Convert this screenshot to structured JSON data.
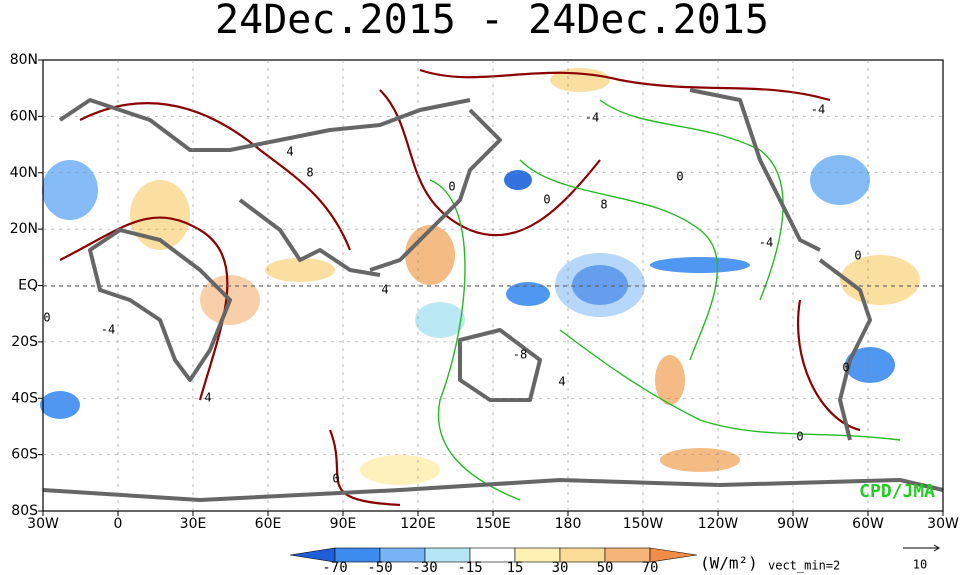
{
  "header": {
    "title": "24Dec.2015 - 24Dec.2015"
  },
  "map": {
    "lat_labels": [
      "80N",
      "60N",
      "40N",
      "20N",
      "EQ",
      "20S",
      "40S",
      "60S",
      "80S"
    ],
    "lon_labels": [
      "30W",
      "0",
      "30E",
      "60E",
      "90E",
      "120E",
      "150E",
      "180",
      "150W",
      "120W",
      "90W",
      "60W",
      "30W"
    ],
    "contour_labels": [
      "4",
      "8",
      "0",
      "-4",
      "0",
      "8",
      "0",
      "-4",
      "-4",
      "0",
      "4",
      "-4",
      "0",
      "-8",
      "4",
      "4",
      "0",
      "0",
      "0"
    ],
    "credit": "CPD/JMA"
  },
  "legend": {
    "ticks": [
      "-70",
      "-50",
      "-30",
      "-15",
      "15",
      "30",
      "50",
      "70"
    ],
    "units": "(W/m²)",
    "vector_note": "vect_min=2",
    "vector_scale": "10"
  }
}
